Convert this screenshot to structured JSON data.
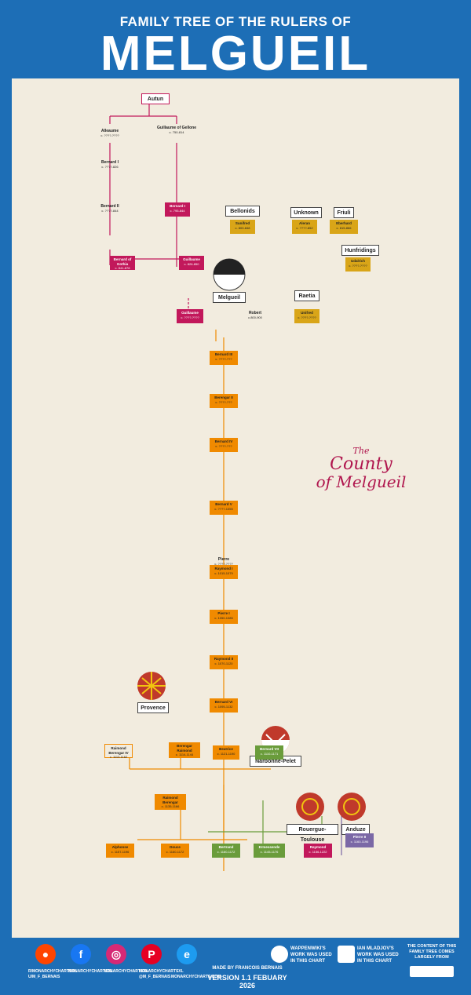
{
  "header": {
    "subtitle": "FAMILY TREE OF THE RULERS OF",
    "title": "MELGUEIL"
  },
  "houses": {
    "autun": "Autun",
    "bellonids": "Bellonids",
    "unknown": "Unknown",
    "friuli": "Friuli",
    "hunfridings": "Hunfridings",
    "melgueil": "Melgueil",
    "raetia": "Raetia",
    "provence": "Provence",
    "narbonne": "Narbonne-Pelet",
    "rouergue": "Rouergue-Toulouse",
    "anduze": "Anduze"
  },
  "persons": {
    "alleaume": {
      "name": "Alleaume",
      "dates": "c. ????-????"
    },
    "guillaume_gellone": {
      "name": "Guillaume of Gellone",
      "dates": "c. 750-814"
    },
    "bernard1": {
      "name": "Bernard I",
      "dates": "c. ????-826"
    },
    "bernard2": {
      "name": "Bernard II",
      "dates": "c. ????-844"
    },
    "bernard_sept": {
      "name": "Bernard I",
      "dates": "c. 795-844"
    },
    "suniefred": {
      "name": "Sunifred",
      "dates": "c. 800-848"
    },
    "aleran": {
      "name": "Aleran",
      "dates": "c. ????-852"
    },
    "eberhard": {
      "name": "Eberhard",
      "dates": "c. 815-866"
    },
    "bernard_gothia": {
      "name": "Bernard of Gothia",
      "dates": "c. 841-878"
    },
    "guillaume_dhuoda": {
      "name": "Guillaume",
      "dates": "c. 826-850"
    },
    "udalrich": {
      "name": "Udalrich",
      "dates": "c. ????-????"
    },
    "guillaume_m": {
      "name": "Guillaume",
      "dates": "c. ????-????"
    },
    "robert": {
      "name": "Robert",
      "dates": "c.800-900"
    },
    "unifred": {
      "name": "Unifred",
      "dates": "c. ????-????"
    },
    "bernard3": {
      "name": "Bernard III",
      "dates": "c. ????-???"
    },
    "berengar1": {
      "name": "Berengar II",
      "dates": "c. ????-???"
    },
    "bernard4": {
      "name": "Bernard IV",
      "dates": "c. ????-???"
    },
    "pierre": {
      "name": "Pierre",
      "dates": "c. ????-????"
    },
    "bernard5": {
      "name": "Bernard V",
      "dates": "c. ????-1055"
    },
    "raymond1": {
      "name": "Raymond I",
      "dates": "c. 1015-1079"
    },
    "pierre1": {
      "name": "Pierre I",
      "dates": "c. 1050-1085"
    },
    "raymond2": {
      "name": "Raymond II",
      "dates": "c. 1070-1120"
    },
    "bernard6": {
      "name": "Bernard VI",
      "dates": "c. 1095-1132"
    },
    "raimond_iv": {
      "name": "Raimond Berengar IV",
      "dates": "c. 1113-1162"
    },
    "berengar_raimond": {
      "name": "Berengar Raimond",
      "dates": "c. 1114-1144"
    },
    "beatrice": {
      "name": "Beatrice",
      "dates": "c. 1121-1190"
    },
    "bernard7": {
      "name": "Bernard VII",
      "dates": "c. 1110-1171"
    },
    "raimond_berengar": {
      "name": "Raimond Berengar",
      "dates": "c. 1135-1166"
    },
    "alphonse": {
      "name": "Alphonse",
      "dates": "c. 1157-1196"
    },
    "douce": {
      "name": "Douce",
      "dates": "c. 1160-1172"
    },
    "bertrand": {
      "name": "Bertrand",
      "dates": "c. 1160-1172"
    },
    "ermessende": {
      "name": "Ermessende",
      "dates": "c. 1145-1176"
    },
    "raymond_rt": {
      "name": "Raymond",
      "dates": "c. 1156-1222"
    },
    "pierre2": {
      "name": "Pierre II",
      "dates": "c. 1160-1196"
    }
  },
  "county": {
    "line1": "The",
    "line2": "County",
    "line3": "of Melgueil"
  },
  "footer": {
    "reddit": "R/MONARCHYCHARTSXL",
    "reddit2": "U/M_F_BERNAIS",
    "fb": "MONARCHYCHARTSXL",
    "ig": "MONARCHYCHARTSXL",
    "pin": "MONARCHYCHARTSXL",
    "web": "MONARCHYCHARTS.COM",
    "twitter": "@M_F_BERNAIS",
    "made": "MADE BY FRANCOIS BERNAIS",
    "version": "VERSION 1.1 FEBUARY 2026",
    "wap1": "WAPPENWIKI'S",
    "wap2": "WORK WAS USED",
    "wap3": "IN THIS CHART",
    "ian1": "IAN MLADJOV'S",
    "ian2": "WORK WAS USED",
    "ian3": "IN THIS CHART",
    "cc1": "THE CONTENT OF THIS",
    "cc2": "FAMILY TREE COMES",
    "cc3": "LARGELY FROM"
  },
  "colors": {
    "blue": "#1d6eb6",
    "crimson": "#c2185b",
    "orange": "#f08a00",
    "green": "#6a9c3b",
    "gold": "#d9a518",
    "purple": "#7b68a6"
  }
}
